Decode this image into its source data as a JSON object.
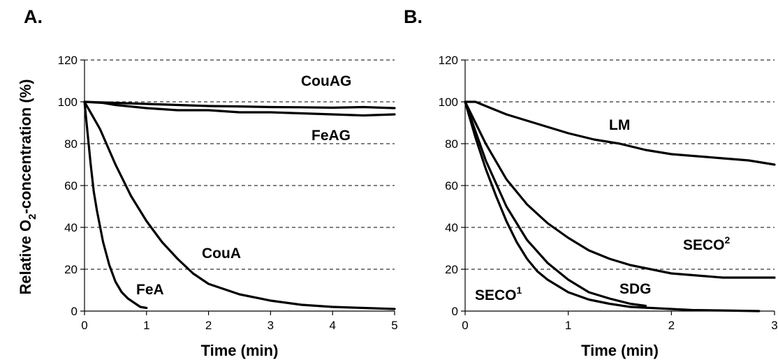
{
  "ylabel": "Relative O",
  "ylabel_sub": "2",
  "ylabel_rest": "-concentration (%)",
  "chart_data": [
    {
      "panel": "A.",
      "type": "line",
      "xlabel": "Time (min)",
      "ylabel": "Relative O2-concentration (%)",
      "xlim": [
        0,
        5
      ],
      "ylim": [
        0,
        120
      ],
      "xticks": [
        0,
        1,
        2,
        3,
        4,
        5
      ],
      "yticks": [
        0,
        20,
        40,
        60,
        80,
        100,
        120
      ],
      "grid": "horizontal dashed",
      "series": [
        {
          "name": "CouAG",
          "label_sup": "",
          "x": [
            0,
            0.5,
            1,
            1.5,
            2,
            2.5,
            3,
            3.5,
            4,
            4.5,
            5
          ],
          "y": [
            100,
            99.5,
            99,
            98.5,
            98,
            97.8,
            97.5,
            97.4,
            97.2,
            97.5,
            97
          ]
        },
        {
          "name": "FeAG",
          "label_sup": "",
          "x": [
            0,
            0.3,
            0.5,
            1,
            1.5,
            2,
            2.5,
            3,
            3.5,
            4,
            4.5,
            5
          ],
          "y": [
            100,
            99.5,
            98.5,
            97,
            96,
            96,
            95,
            95,
            94.5,
            94,
            93.5,
            94
          ]
        },
        {
          "name": "CouA",
          "label_sup": "",
          "x": [
            0,
            0.25,
            0.5,
            0.75,
            1,
            1.25,
            1.5,
            1.75,
            2,
            2.5,
            3,
            3.5,
            4,
            4.5,
            5
          ],
          "y": [
            100,
            87,
            70,
            55,
            43,
            33,
            25,
            18,
            13,
            8,
            5,
            3,
            2,
            1.5,
            1
          ]
        },
        {
          "name": "FeA",
          "label_sup": "",
          "x": [
            0,
            0.05,
            0.1,
            0.15,
            0.2,
            0.3,
            0.4,
            0.5,
            0.6,
            0.7,
            0.8,
            0.9,
            1
          ],
          "y": [
            100,
            85,
            70,
            57,
            48,
            33,
            22,
            14,
            9,
            6,
            4,
            2,
            1.5
          ]
        }
      ]
    },
    {
      "panel": "B.",
      "type": "line",
      "xlabel": "Time (min)",
      "ylabel": "",
      "xlim": [
        0,
        3
      ],
      "ylim": [
        0,
        120
      ],
      "xticks": [
        0,
        1,
        2,
        3
      ],
      "yticks": [
        0,
        20,
        40,
        60,
        80,
        100,
        120
      ],
      "grid": "horizontal dashed",
      "series": [
        {
          "name": "LM",
          "label_sup": "",
          "x": [
            0,
            0.1,
            0.2,
            0.4,
            0.6,
            0.8,
            1,
            1.25,
            1.5,
            1.75,
            2,
            2.25,
            2.5,
            2.75,
            3
          ],
          "y": [
            100,
            100,
            98,
            94,
            91,
            88,
            85,
            82,
            80,
            77,
            75,
            74,
            73,
            72,
            70
          ]
        },
        {
          "name": "SECO",
          "label_sup": "2",
          "x": [
            0,
            0.2,
            0.4,
            0.6,
            0.8,
            1,
            1.2,
            1.4,
            1.6,
            1.8,
            2,
            2.25,
            2.5,
            2.75,
            3
          ],
          "y": [
            100,
            80,
            63,
            51,
            42,
            35,
            29,
            25,
            22,
            20,
            18,
            17,
            16,
            16,
            16
          ]
        },
        {
          "name": "SDG",
          "label_sup": "",
          "x": [
            0,
            0.2,
            0.4,
            0.6,
            0.8,
            1,
            1.2,
            1.4,
            1.6,
            1.75
          ],
          "y": [
            100,
            72,
            50,
            34,
            23,
            15,
            9,
            6,
            3.5,
            2.5
          ]
        },
        {
          "name": "SECO",
          "label_sup": "1",
          "x": [
            0,
            0.1,
            0.2,
            0.3,
            0.4,
            0.5,
            0.6,
            0.7,
            0.8,
            1,
            1.2,
            1.4,
            1.6,
            1.8,
            2,
            2.2,
            2.5,
            2.85
          ],
          "y": [
            100,
            83,
            68,
            55,
            43,
            33,
            25,
            19,
            15,
            9,
            5.5,
            3.5,
            2,
            1.5,
            1,
            0.5,
            0.3,
            0
          ]
        }
      ]
    }
  ]
}
